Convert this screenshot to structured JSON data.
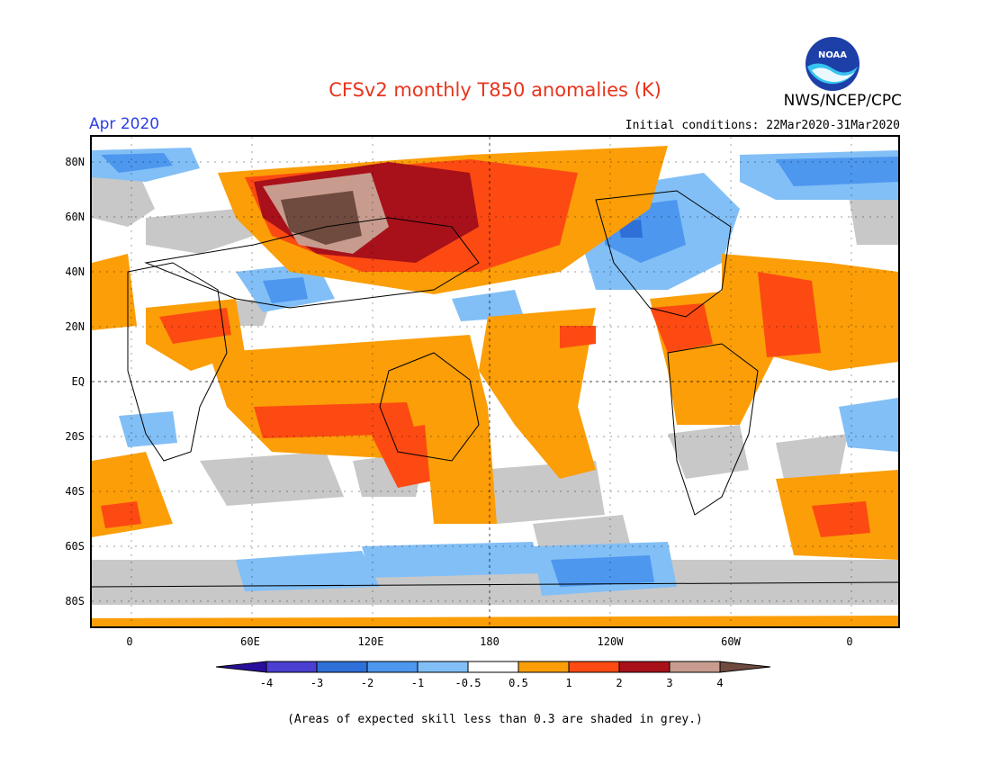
{
  "title": "CFSv2 monthly T850 anomalies (K)",
  "agency": "NWS/NCEP/CPC",
  "logo_text": "NOAA",
  "month": "Apr 2020",
  "initial_conditions": "Initial conditions: 22Mar2020-31Mar2020",
  "lat_labels": [
    "80N",
    "60N",
    "40N",
    "20N",
    "EQ",
    "20S",
    "40S",
    "60S",
    "80S"
  ],
  "lon_labels": [
    "0",
    "60E",
    "120E",
    "180",
    "120W",
    "60W",
    "0"
  ],
  "colorbar": {
    "labels": [
      "-4",
      "-3",
      "-2",
      "-1",
      "-0.5",
      "0.5",
      "1",
      "2",
      "3",
      "4"
    ],
    "colors": [
      "#2a0e9c",
      "#4a3fd0",
      "#2f6fd8",
      "#4d97ef",
      "#82bff6",
      "#ffffff",
      "#fb9e07",
      "#fc4a12",
      "#a8111a",
      "#c79c8e",
      "#6f4a3e"
    ]
  },
  "footnote": "(Areas of expected skill less than 0.3 are shaded in grey.)",
  "colors": {
    "title": "#e8341c",
    "month": "#2d3ee8",
    "skill_grey": "#c8c8c8"
  }
}
